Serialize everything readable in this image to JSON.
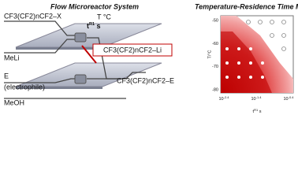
{
  "left": {
    "title": "Flow Microreactor System",
    "substrate": "CF3(CF2)nCF2–X",
    "temperature": "T °C",
    "residence": {
      "symbol": "t",
      "sup": "R1",
      "unit": " s"
    },
    "reagent": "MeLi",
    "intermediate": "CF3(CF2)nCF2–Li",
    "electrophile": "E",
    "electrophile_note": "(electrophile)",
    "product": "CF3(CF2)nCF2–E",
    "quench": "MeOH"
  },
  "right": {
    "title": "Temperature-Residence Time Map",
    "y_label": "T/°C",
    "yticks": [
      "-50",
      "-60",
      "-70",
      "-80"
    ],
    "x_label": {
      "symbol": "t",
      "sup": "R1",
      "unit": " s"
    },
    "xticks": [
      {
        "base": "10",
        "exp": "-2.4"
      },
      {
        "base": "10",
        "exp": "-1.4"
      },
      {
        "base": "10",
        "exp": "-0.4"
      }
    ]
  }
}
